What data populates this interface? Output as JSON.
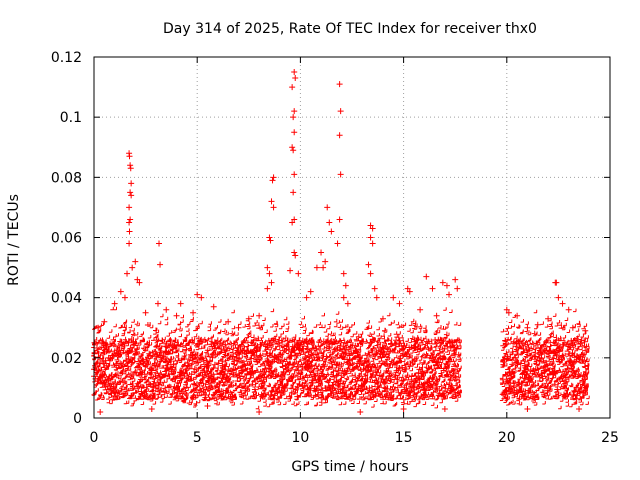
{
  "chart_data": {
    "type": "scatter",
    "title": "Day 314 of 2025, Rate Of TEC Index for receiver thx0",
    "xlabel": "GPS time / hours",
    "ylabel": "ROTI / TECUs",
    "xlim": [
      0,
      25
    ],
    "ylim": [
      0,
      0.12
    ],
    "xticks": [
      0,
      5,
      10,
      15,
      20,
      25
    ],
    "xtick_labels": [
      "0",
      "5",
      "10",
      "15",
      "20",
      "25"
    ],
    "yticks": [
      0,
      0.02,
      0.04,
      0.06,
      0.08,
      0.1,
      0.12
    ],
    "ytick_labels": [
      "0",
      "0.02",
      "0.04",
      "0.06",
      "0.08",
      "0.1",
      "0.12"
    ],
    "grid": true,
    "marker": "+",
    "color": "#ff0000",
    "data_gaps_hours": [
      [
        17.8,
        19.8
      ]
    ],
    "series": [
      {
        "name": "ROTI",
        "points": [
          [
            1.7,
            0.088
          ],
          [
            1.72,
            0.087
          ],
          [
            1.75,
            0.084
          ],
          [
            1.78,
            0.083
          ],
          [
            1.8,
            0.078
          ],
          [
            1.75,
            0.075
          ],
          [
            1.8,
            0.074
          ],
          [
            1.7,
            0.07
          ],
          [
            1.75,
            0.066
          ],
          [
            1.7,
            0.065
          ],
          [
            1.72,
            0.062
          ],
          [
            1.7,
            0.058
          ],
          [
            1.85,
            0.05
          ],
          [
            1.6,
            0.048
          ],
          [
            2.0,
            0.052
          ],
          [
            2.1,
            0.046
          ],
          [
            2.2,
            0.045
          ],
          [
            3.15,
            0.058
          ],
          [
            3.2,
            0.051
          ],
          [
            3.1,
            0.038
          ],
          [
            4.2,
            0.038
          ],
          [
            5.0,
            0.041
          ],
          [
            5.2,
            0.04
          ],
          [
            4.8,
            0.035
          ],
          [
            5.8,
            0.037
          ],
          [
            8.5,
            0.06
          ],
          [
            8.55,
            0.059
          ],
          [
            8.65,
            0.079
          ],
          [
            8.7,
            0.08
          ],
          [
            8.6,
            0.072
          ],
          [
            8.7,
            0.07
          ],
          [
            8.4,
            0.05
          ],
          [
            8.5,
            0.048
          ],
          [
            8.6,
            0.045
          ],
          [
            8.4,
            0.043
          ],
          [
            9.7,
            0.115
          ],
          [
            9.75,
            0.113
          ],
          [
            9.6,
            0.11
          ],
          [
            9.7,
            0.102
          ],
          [
            9.65,
            0.1
          ],
          [
            9.7,
            0.095
          ],
          [
            9.6,
            0.09
          ],
          [
            9.65,
            0.089
          ],
          [
            9.7,
            0.081
          ],
          [
            9.65,
            0.075
          ],
          [
            9.7,
            0.066
          ],
          [
            9.6,
            0.065
          ],
          [
            9.7,
            0.055
          ],
          [
            9.75,
            0.054
          ],
          [
            9.5,
            0.049
          ],
          [
            9.9,
            0.048
          ],
          [
            10.8,
            0.05
          ],
          [
            11.0,
            0.055
          ],
          [
            11.2,
            0.052
          ],
          [
            11.1,
            0.05
          ],
          [
            11.3,
            0.07
          ],
          [
            11.4,
            0.065
          ],
          [
            11.9,
            0.111
          ],
          [
            11.95,
            0.102
          ],
          [
            11.9,
            0.094
          ],
          [
            11.95,
            0.081
          ],
          [
            11.9,
            0.066
          ],
          [
            11.5,
            0.062
          ],
          [
            11.8,
            0.058
          ],
          [
            12.1,
            0.048
          ],
          [
            12.2,
            0.044
          ],
          [
            12.1,
            0.04
          ],
          [
            12.3,
            0.038
          ],
          [
            13.4,
            0.064
          ],
          [
            13.5,
            0.063
          ],
          [
            13.4,
            0.06
          ],
          [
            13.5,
            0.058
          ],
          [
            13.3,
            0.051
          ],
          [
            13.4,
            0.048
          ],
          [
            13.6,
            0.043
          ],
          [
            13.7,
            0.04
          ],
          [
            14.5,
            0.04
          ],
          [
            14.8,
            0.038
          ],
          [
            15.2,
            0.043
          ],
          [
            15.3,
            0.042
          ],
          [
            16.1,
            0.047
          ],
          [
            16.4,
            0.043
          ],
          [
            16.9,
            0.045
          ],
          [
            17.1,
            0.044
          ],
          [
            17.2,
            0.041
          ],
          [
            17.5,
            0.046
          ],
          [
            17.6,
            0.043
          ],
          [
            20.0,
            0.036
          ],
          [
            20.1,
            0.035
          ],
          [
            20.5,
            0.034
          ],
          [
            21.0,
            0.03
          ],
          [
            21.5,
            0.031
          ],
          [
            22.0,
            0.033
          ],
          [
            22.35,
            0.045
          ],
          [
            22.4,
            0.045
          ],
          [
            22.5,
            0.04
          ],
          [
            22.7,
            0.038
          ],
          [
            23.0,
            0.036
          ],
          [
            23.2,
            0.03
          ],
          [
            23.8,
            0.029
          ],
          [
            0.2,
            0.03
          ],
          [
            0.5,
            0.032
          ],
          [
            1.0,
            0.038
          ],
          [
            1.3,
            0.042
          ],
          [
            1.5,
            0.04
          ],
          [
            2.5,
            0.035
          ],
          [
            3.5,
            0.036
          ],
          [
            4.0,
            0.034
          ],
          [
            6.5,
            0.032
          ],
          [
            7.0,
            0.03
          ],
          [
            7.5,
            0.033
          ],
          [
            8.0,
            0.034
          ],
          [
            10.3,
            0.04
          ],
          [
            10.5,
            0.042
          ],
          [
            14.0,
            0.033
          ],
          [
            15.8,
            0.036
          ],
          [
            16.6,
            0.034
          ],
          [
            0.3,
            0.002
          ],
          [
            2.8,
            0.003
          ],
          [
            5.5,
            0.004
          ],
          [
            8.0,
            0.002
          ],
          [
            12.9,
            0.002
          ],
          [
            15.0,
            0.003
          ],
          [
            17.0,
            0.003
          ],
          [
            21.0,
            0.003
          ],
          [
            23.5,
            0.003
          ]
        ]
      }
    ]
  }
}
